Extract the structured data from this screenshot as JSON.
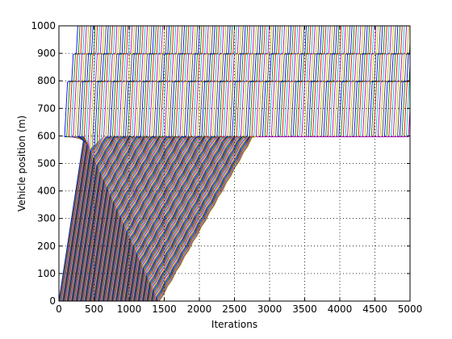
{
  "chart_data": {
    "type": "line",
    "title": "",
    "xlabel": "Iterations",
    "ylabel": "Vehicle position (m)",
    "xlim": [
      0,
      5000
    ],
    "ylim": [
      0,
      1000
    ],
    "x_ticks": [
      "0",
      "500",
      "1000",
      "1500",
      "2000",
      "2500",
      "3000",
      "3500",
      "4000",
      "4500",
      "5000"
    ],
    "y_ticks": [
      "0",
      "100",
      "200",
      "300",
      "400",
      "500",
      "600",
      "700",
      "800",
      "900",
      "1000"
    ],
    "grid": true,
    "legend": "none",
    "colors": [
      "#0000ff",
      "#008000",
      "#ff0000",
      "#00bfbf",
      "#bf00bf",
      "#bfbf00",
      "#404040"
    ],
    "series_description_values": {
      "vehicle_count": 160,
      "entry_spacing_iterations": 9,
      "free_flow_speed_m_per_iter": 1.67,
      "queue_jam_position_m": 597,
      "queue_spacing_m": 3.8,
      "creep_speed_m_per_iter": 0.45,
      "stop_positions_m": [
        800,
        900
      ]
    }
  }
}
